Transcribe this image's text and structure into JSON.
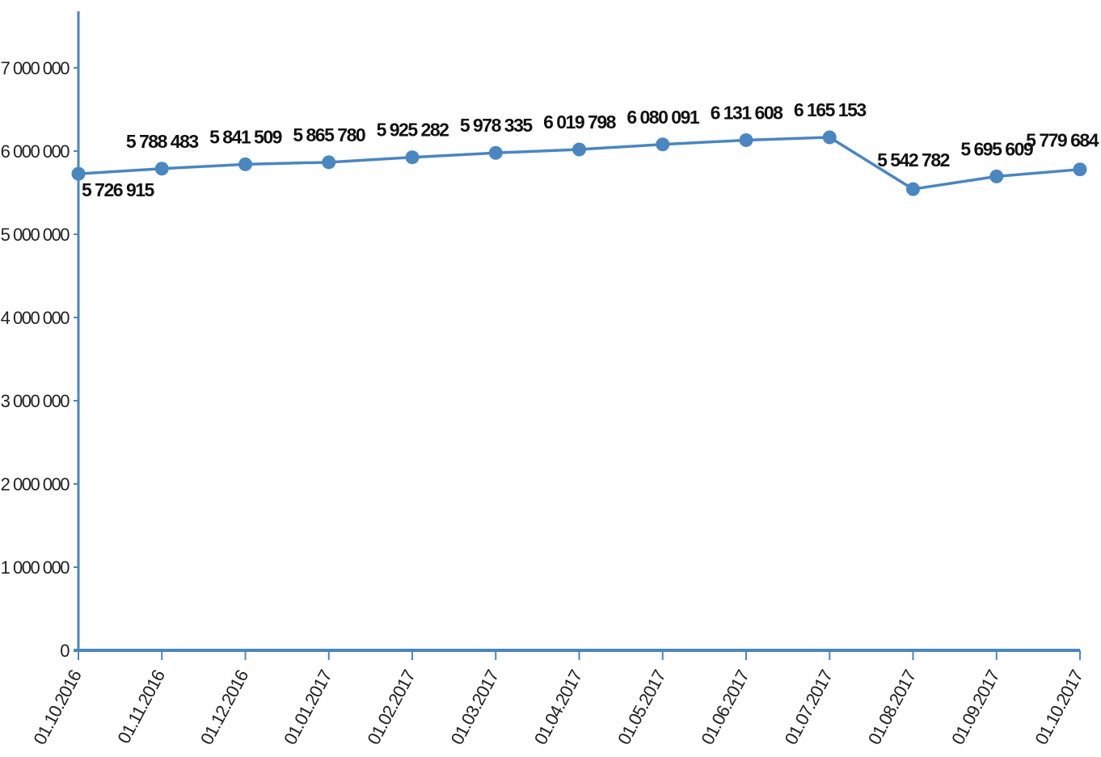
{
  "chart_data": {
    "type": "line",
    "title": "",
    "xlabel": "",
    "ylabel": "",
    "ylim": [
      0,
      7500000
    ],
    "yticks": [
      {
        "value": 0,
        "label": "0"
      },
      {
        "value": 1000000,
        "label": "1 000 000"
      },
      {
        "value": 2000000,
        "label": "2 000 000"
      },
      {
        "value": 3000000,
        "label": "3 000 000"
      },
      {
        "value": 4000000,
        "label": "4 000 000"
      },
      {
        "value": 5000000,
        "label": "5 000 000"
      },
      {
        "value": 6000000,
        "label": "6 000 000"
      },
      {
        "value": 7000000,
        "label": "7 000 000"
      }
    ],
    "categories": [
      "01.10.2016",
      "01.11.2016",
      "01.12.2016",
      "01.01.2017",
      "01.02.2017",
      "01.03.2017",
      "01.04.2017",
      "01.05.2017",
      "01.06.2017",
      "01.07.2017",
      "01.08.2017",
      "01.09.2017",
      "01.10.2017"
    ],
    "grid": false,
    "legend": "none",
    "color": "#4a86c0",
    "series": [
      {
        "values": [
          5726915,
          5788483,
          5841509,
          5865780,
          5925282,
          5978335,
          6019798,
          6080091,
          6131608,
          6165153,
          5542782,
          5695609,
          5779684
        ],
        "labels": [
          "5 726 915",
          "5 788 483",
          "5 841 509",
          "5 865 780",
          "5 925 282",
          "5 978 335",
          "6 019 798",
          "6 080 091",
          "6 131 608",
          "6 165 153",
          "5 542 782",
          "5 695 609",
          "5 779 684"
        ]
      }
    ]
  }
}
